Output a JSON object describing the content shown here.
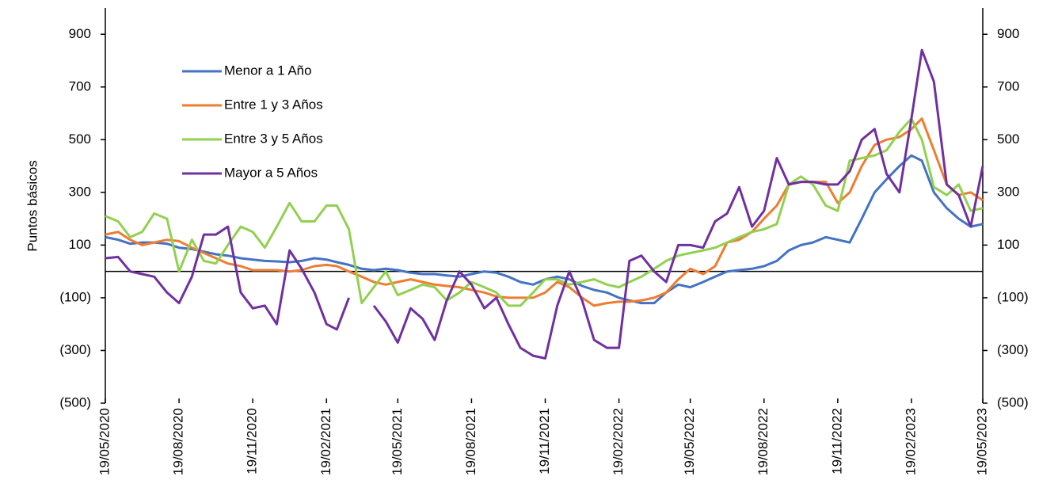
{
  "chart_data": {
    "type": "line",
    "y_label": "Puntos básicos",
    "x": [
      "19/05/2020",
      "04/06/2020",
      "19/06/2020",
      "04/07/2020",
      "19/07/2020",
      "04/08/2020",
      "19/08/2020",
      "04/09/2020",
      "19/09/2020",
      "04/10/2020",
      "19/10/2020",
      "04/11/2020",
      "19/11/2020",
      "04/12/2020",
      "19/12/2020",
      "04/01/2021",
      "19/01/2021",
      "04/02/2021",
      "19/02/2021",
      "04/03/2021",
      "19/03/2021",
      "04/04/2021",
      "19/04/2021",
      "04/05/2021",
      "19/05/2021",
      "04/06/2021",
      "19/06/2021",
      "04/07/2021",
      "19/07/2021",
      "04/08/2021",
      "19/08/2021",
      "04/09/2021",
      "19/09/2021",
      "04/10/2021",
      "19/10/2021",
      "04/11/2021",
      "19/11/2021",
      "04/12/2021",
      "19/12/2021",
      "04/01/2022",
      "19/01/2022",
      "04/02/2022",
      "19/02/2022",
      "04/03/2022",
      "19/03/2022",
      "04/04/2022",
      "19/04/2022",
      "04/05/2022",
      "19/05/2022",
      "04/06/2022",
      "19/06/2022",
      "04/07/2022",
      "19/07/2022",
      "04/08/2022",
      "19/08/2022",
      "04/09/2022",
      "19/09/2022",
      "04/10/2022",
      "19/10/2022",
      "04/11/2022",
      "19/11/2022",
      "04/12/2022",
      "19/12/2022",
      "04/01/2023",
      "19/01/2023",
      "04/02/2023",
      "19/02/2023",
      "04/03/2023",
      "19/03/2023",
      "04/04/2023",
      "19/04/2023",
      "04/05/2023",
      "19/05/2023"
    ],
    "xlim": [
      "19/05/2020",
      "19/05/2023"
    ],
    "xticks": [
      "19/05/2020",
      "19/08/2020",
      "19/11/2020",
      "19/02/2021",
      "19/05/2021",
      "19/08/2021",
      "19/11/2021",
      "19/02/2022",
      "19/05/2022",
      "19/08/2022",
      "19/11/2022",
      "19/02/2023",
      "19/05/2023"
    ],
    "ylim": [
      -500,
      1000
    ],
    "yticks": [
      {
        "value": -500,
        "label": "(500)"
      },
      {
        "value": -300,
        "label": "(300)"
      },
      {
        "value": -100,
        "label": "(100)"
      },
      100,
      300,
      500,
      700,
      900
    ],
    "y2lim": [
      -500,
      1000
    ],
    "y2ticks": [
      {
        "value": -500,
        "label": "(500)"
      },
      {
        "value": -300,
        "label": "(300)"
      },
      {
        "value": -100,
        "label": "(100)"
      },
      100,
      300,
      500,
      700,
      900
    ],
    "series": [
      {
        "name": "Menor a 1 Año",
        "color": "#4472c4",
        "values": [
          130,
          120,
          105,
          110,
          110,
          105,
          90,
          85,
          75,
          65,
          60,
          50,
          45,
          40,
          38,
          35,
          40,
          50,
          45,
          35,
          25,
          10,
          5,
          10,
          5,
          -5,
          -10,
          -10,
          -15,
          -20,
          -10,
          0,
          -5,
          -20,
          -40,
          -50,
          -30,
          -20,
          -30,
          -55,
          -70,
          -80,
          -100,
          -110,
          -120,
          -120,
          -80,
          -50,
          -60,
          -40,
          -20,
          0,
          5,
          10,
          20,
          40,
          80,
          100,
          110,
          130,
          120,
          110,
          200,
          300,
          350,
          400,
          440,
          420,
          300,
          240,
          200,
          170,
          180
        ]
      },
      {
        "name": "Entre 1 y 3 Años",
        "color": "#ed7d31",
        "values": [
          140,
          150,
          120,
          100,
          110,
          120,
          115,
          90,
          70,
          50,
          30,
          20,
          5,
          5,
          5,
          0,
          5,
          20,
          25,
          20,
          0,
          -20,
          -40,
          -50,
          -40,
          -30,
          -40,
          -50,
          -55,
          -60,
          -70,
          -80,
          -95,
          -100,
          -100,
          -100,
          -80,
          -40,
          -60,
          -100,
          -130,
          -120,
          -115,
          -115,
          -110,
          -100,
          -80,
          -30,
          10,
          -10,
          20,
          110,
          120,
          150,
          200,
          250,
          330,
          340,
          340,
          340,
          260,
          300,
          400,
          480,
          500,
          510,
          540,
          580,
          460,
          330,
          290,
          300,
          270
        ]
      },
      {
        "name": "Entre 3 y 5 Años",
        "color": "#92d050",
        "values": [
          210,
          190,
          130,
          150,
          220,
          200,
          0,
          120,
          40,
          30,
          100,
          170,
          150,
          90,
          170,
          260,
          190,
          190,
          250,
          250,
          160,
          -120,
          -60,
          0,
          -90,
          -70,
          -50,
          -60,
          -110,
          -80,
          -40,
          -60,
          -80,
          -130,
          -130,
          -80,
          -30,
          -30,
          -50,
          -40,
          -30,
          -50,
          -60,
          -40,
          -20,
          10,
          40,
          60,
          70,
          80,
          90,
          110,
          130,
          150,
          160,
          180,
          330,
          360,
          330,
          250,
          230,
          420,
          430,
          440,
          460,
          530,
          580,
          500,
          320,
          290,
          330,
          230,
          240
        ]
      },
      {
        "name": "Mayor a 5 Años",
        "color": "#7030a0",
        "values": [
          50,
          55,
          0,
          -10,
          -20,
          -80,
          -120,
          -20,
          140,
          140,
          170,
          -80,
          -140,
          -130,
          -200,
          80,
          10,
          -80,
          -200,
          -220,
          -100,
          null,
          -130,
          -190,
          -270,
          -140,
          -180,
          -260,
          -110,
          0,
          -50,
          -140,
          -100,
          -200,
          -290,
          -320,
          -330,
          -130,
          0,
          -110,
          -260,
          -290,
          -290,
          40,
          60,
          0,
          -40,
          100,
          100,
          90,
          190,
          220,
          320,
          170,
          230,
          430,
          330,
          340,
          340,
          330,
          330,
          380,
          500,
          540,
          370,
          300,
          580,
          840,
          720,
          330,
          290,
          170,
          400
        ]
      }
    ]
  }
}
